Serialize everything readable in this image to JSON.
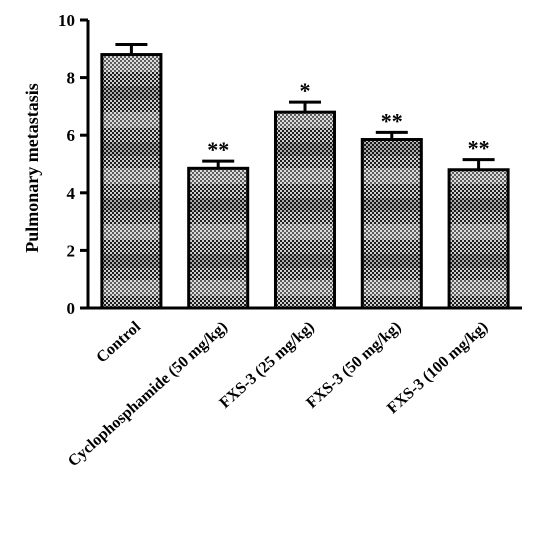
{
  "chart_data": {
    "type": "bar",
    "categories": [
      "Control",
      "Cyclophosphamide (50 mg/kg)",
      "FXS-3 (25 mg/kg)",
      "FXS-3 (50 mg/kg)",
      "FXS-3 (100 mg/kg)"
    ],
    "values": [
      8.8,
      4.85,
      6.8,
      5.85,
      4.8
    ],
    "errors": [
      0.35,
      0.25,
      0.35,
      0.25,
      0.35
    ],
    "significance": [
      "",
      "**",
      "*",
      "**",
      "**"
    ],
    "title": "",
    "xlabel": "",
    "ylabel": "Pulmonary metastasis",
    "ylim": [
      0,
      10
    ],
    "yticks": [
      0,
      2,
      4,
      6,
      8,
      10
    ],
    "grid": false,
    "colors": {
      "bar_dark": "#2a2a2a",
      "bar_light": "#d8d8d8",
      "stroke": "#000000"
    }
  }
}
